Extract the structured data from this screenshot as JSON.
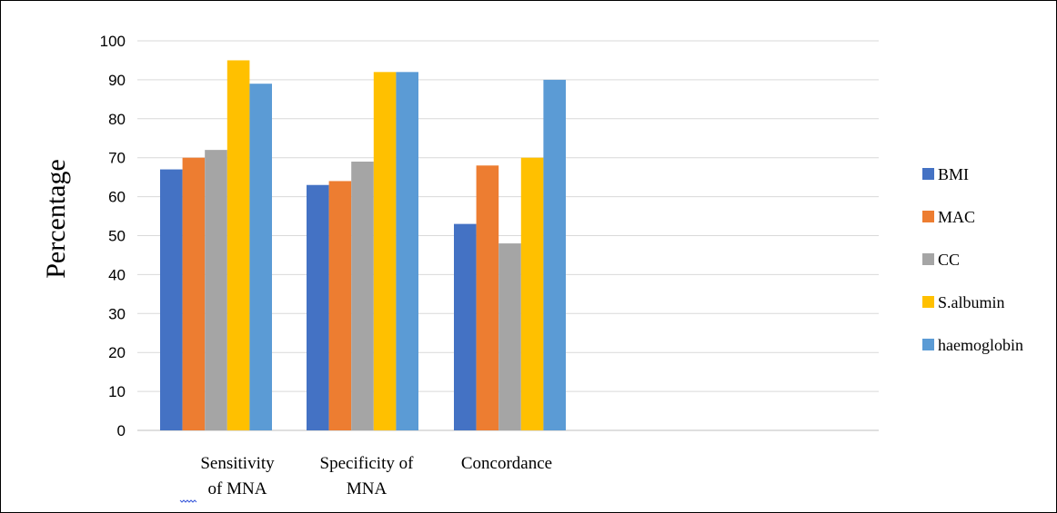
{
  "chart_data": {
    "type": "bar",
    "title": "",
    "xlabel": "",
    "ylabel": "Percentage",
    "ylim": [
      0,
      100
    ],
    "yticks": [
      0,
      10,
      20,
      30,
      40,
      50,
      60,
      70,
      80,
      90,
      100
    ],
    "grid": true,
    "legend_position": "right",
    "categories": [
      [
        "Sensitivity",
        "of MNA"
      ],
      [
        "Specificity of",
        "MNA"
      ],
      [
        "Concordance"
      ]
    ],
    "series": [
      {
        "name": "BMI",
        "color": "#4472C4",
        "values": [
          67,
          63,
          53
        ]
      },
      {
        "name": "MAC",
        "color": "#ED7D31",
        "values": [
          70,
          64,
          68
        ]
      },
      {
        "name": "CC",
        "color": "#A5A5A5",
        "values": [
          72,
          69,
          48
        ]
      },
      {
        "name": "S.albumin",
        "color": "#FFC000",
        "values": [
          95,
          92,
          70
        ]
      },
      {
        "name": "haemoglobin",
        "color": "#5B9BD5",
        "values": [
          89,
          92,
          90
        ]
      }
    ]
  }
}
